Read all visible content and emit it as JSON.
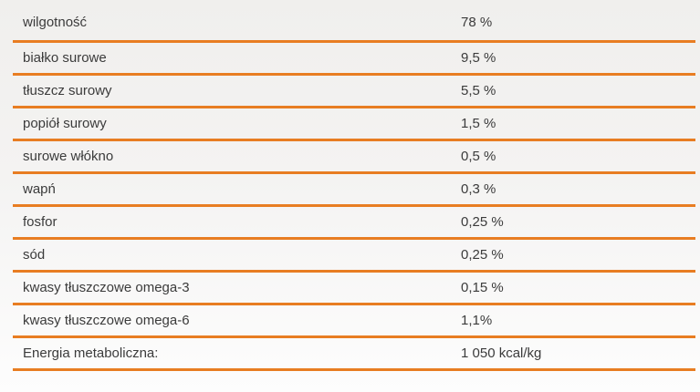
{
  "table": {
    "name": "nutrition-analysis-table",
    "columns": [
      "nutrient",
      "amount"
    ],
    "rows": [
      {
        "label": "wilgotność",
        "value": "78 %"
      },
      {
        "label": "białko surowe",
        "value": "9,5 %"
      },
      {
        "label": "tłuszcz surowy",
        "value": "5,5 %"
      },
      {
        "label": "popiół surowy",
        "value": "1,5 %"
      },
      {
        "label": "surowe włókno",
        "value": "0,5 %"
      },
      {
        "label": "wapń",
        "value": "0,3 %"
      },
      {
        "label": "fosfor",
        "value": "0,25 %"
      },
      {
        "label": "sód",
        "value": "0,25 %"
      },
      {
        "label": "kwasy tłuszczowe omega-3",
        "value": "0,15 %"
      },
      {
        "label": "kwasy tłuszczowe omega-6",
        "value": "1,1%"
      },
      {
        "label": "Energia metaboliczna:",
        "value": "1 050 kcal/kg"
      }
    ]
  },
  "colors": {
    "divider": "#e87d22",
    "text": "#3b3b3b",
    "background_top": "#f0efed",
    "background_bottom": "#fdfdfd"
  }
}
